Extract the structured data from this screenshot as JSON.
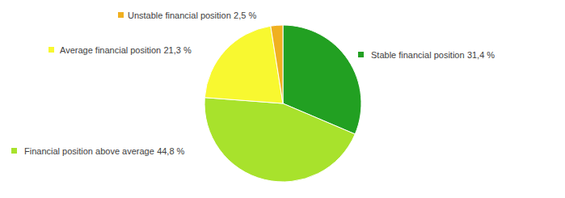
{
  "chart_data": {
    "type": "pie",
    "categories": [
      "Stable financial position",
      "Financial position above average",
      "Average financial position",
      "Unstable financial position"
    ],
    "values": [
      31.4,
      44.8,
      21.3,
      2.5
    ],
    "value_labels": [
      "31,4 %",
      "44,8 %",
      "21,3 %",
      "2,5 %"
    ],
    "colors": [
      "#22a022",
      "#a8e22c",
      "#f8f830",
      "#f0b020"
    ],
    "data_labels": true
  }
}
